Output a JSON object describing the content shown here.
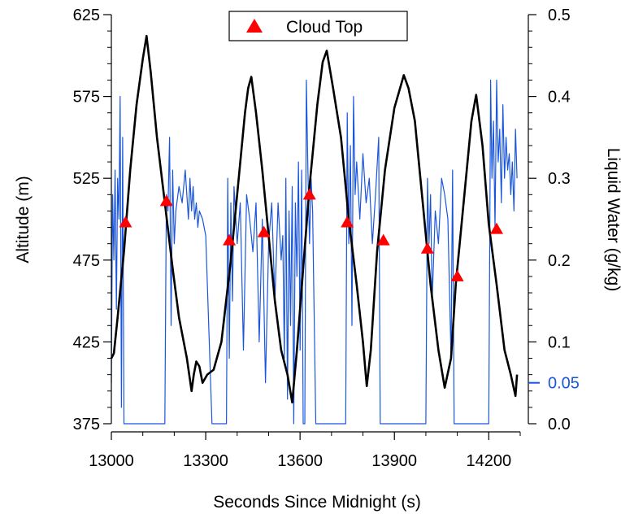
{
  "chart_data": {
    "type": "line",
    "xlabel": "Seconds Since Midnight (s)",
    "ylabel_left": "Altitude (m)",
    "ylabel_right": "Liquid Water (g/kg)",
    "xlim": [
      13000,
      14300
    ],
    "ylim_left": [
      375,
      625
    ],
    "ylim_right": [
      0.0,
      0.5
    ],
    "x_ticks": [
      "13000",
      "13300",
      "13600",
      "13900",
      "14200"
    ],
    "y_left_ticks": [
      "375",
      "425",
      "475",
      "525",
      "575",
      "625"
    ],
    "y_right_ticks": [
      "0.0",
      "0.1",
      "0.2",
      "0.3",
      "0.4",
      "0.5"
    ],
    "y_right_highlight_tick": {
      "label": "0.05",
      "value": 0.05,
      "color": "#1a56db"
    },
    "legend": {
      "label": "Cloud Top",
      "position": "top-center"
    },
    "colors": {
      "altitude": "#000000",
      "liquid_water": "#1a56db",
      "cloud_top": "#ff0000"
    },
    "series": [
      {
        "axis": "left",
        "style": "line",
        "x": [
          13000,
          13008,
          13020,
          13040,
          13060,
          13080,
          13100,
          13112,
          13125,
          13145,
          13170,
          13195,
          13215,
          13240,
          13255,
          13262,
          13270,
          13280,
          13290,
          13305,
          13325,
          13350,
          13380,
          13405,
          13425,
          13435,
          13445,
          13460,
          13480,
          13500,
          13520,
          13540,
          13560,
          13575,
          13590,
          13610,
          13630,
          13655,
          13672,
          13685,
          13705,
          13730,
          13755,
          13780,
          13800,
          13812,
          13825,
          13845,
          13870,
          13900,
          13930,
          13945,
          13965,
          13990,
          14015,
          14040,
          14060,
          14080,
          14095,
          14110,
          14125,
          14145,
          14160,
          14180,
          14200,
          14225,
          14250,
          14270,
          14285,
          14290
        ],
        "y": [
          415,
          418,
          440,
          480,
          530,
          570,
          598,
          612,
          590,
          550,
          510,
          470,
          440,
          415,
          395,
          405,
          413,
          410,
          400,
          405,
          408,
          425,
          475,
          525,
          565,
          580,
          587,
          565,
          530,
          490,
          450,
          420,
          405,
          388,
          420,
          470,
          520,
          570,
          596,
          603,
          580,
          550,
          500,
          460,
          425,
          398,
          420,
          480,
          530,
          568,
          588,
          580,
          560,
          510,
          460,
          420,
          397,
          415,
          460,
          490,
          520,
          560,
          576,
          545,
          497,
          460,
          420,
          405,
          392,
          405
        ]
      },
      {
        "axis": "right",
        "style": "line",
        "x": [
          13000,
          13004,
          13008,
          13012,
          13016,
          13020,
          13024,
          13028,
          13032,
          13036,
          13040,
          13044,
          13048,
          13052,
          13060,
          13080,
          13100,
          13120,
          13140,
          13160,
          13170,
          13175,
          13180,
          13185,
          13190,
          13195,
          13200,
          13205,
          13215,
          13225,
          13235,
          13245,
          13250,
          13255,
          13260,
          13265,
          13270,
          13275,
          13280,
          13290,
          13300,
          13320,
          13340,
          13360,
          13366,
          13370,
          13375,
          13380,
          13385,
          13390,
          13400,
          13410,
          13420,
          13430,
          13440,
          13450,
          13460,
          13470,
          13480,
          13490,
          13500,
          13510,
          13520,
          13530,
          13540,
          13545,
          13550,
          13555,
          13560,
          13565,
          13570,
          13575,
          13580,
          13585,
          13590,
          13595,
          13600,
          13605,
          13610,
          13615,
          13620,
          13625,
          13630,
          13635,
          13640,
          13650,
          13670,
          13700,
          13730,
          13745,
          13750,
          13755,
          13760,
          13765,
          13770,
          13775,
          13780,
          13790,
          13800,
          13810,
          13820,
          13830,
          13840,
          13850,
          13855,
          13860,
          13870,
          13900,
          13940,
          13980,
          14000,
          14005,
          14010,
          14015,
          14020,
          14030,
          14040,
          14050,
          14060,
          14070,
          14080,
          14085,
          14090,
          14100,
          14120,
          14160,
          14200,
          14206,
          14210,
          14215,
          14220,
          14225,
          14230,
          14235,
          14240,
          14245,
          14250,
          14255,
          14260,
          14265,
          14270,
          14275,
          14280,
          14285,
          14290
        ],
        "y": [
          0.05,
          0.28,
          0.2,
          0.31,
          0.14,
          0.3,
          0.25,
          0.4,
          0.02,
          0.35,
          0.0,
          0.0,
          0.0,
          0.0,
          0.0,
          0.0,
          0.0,
          0.0,
          0.0,
          0.0,
          0.0,
          0.28,
          0.26,
          0.35,
          0.12,
          0.31,
          0.22,
          0.26,
          0.29,
          0.27,
          0.31,
          0.25,
          0.3,
          0.26,
          0.29,
          0.25,
          0.27,
          0.24,
          0.26,
          0.25,
          0.23,
          0.0,
          0.0,
          0.0,
          0.0,
          0.3,
          0.08,
          0.27,
          0.15,
          0.29,
          0.22,
          0.27,
          0.09,
          0.28,
          0.25,
          0.21,
          0.27,
          0.1,
          0.25,
          0.05,
          0.22,
          0.27,
          0.15,
          0.27,
          0.2,
          0.23,
          0.08,
          0.3,
          0.03,
          0.26,
          0.12,
          0.29,
          0.0,
          0.27,
          0.18,
          0.32,
          0.09,
          0.31,
          0.0,
          0.0,
          0.42,
          0.31,
          0.22,
          0.3,
          0.26,
          0.0,
          0.0,
          0.0,
          0.0,
          0.0,
          0.38,
          0.22,
          0.34,
          0.12,
          0.4,
          0.28,
          0.32,
          0.25,
          0.33,
          0.27,
          0.3,
          0.22,
          0.28,
          0.35,
          0.0,
          0.0,
          0.0,
          0.0,
          0.0,
          0.0,
          0.0,
          0.3,
          0.22,
          0.28,
          0.15,
          0.26,
          0.22,
          0.3,
          0.28,
          0.25,
          0.08,
          0.31,
          0.0,
          0.0,
          0.0,
          0.0,
          0.0,
          0.42,
          0.3,
          0.37,
          0.24,
          0.42,
          0.32,
          0.36,
          0.27,
          0.39,
          0.3,
          0.35,
          0.31,
          0.33,
          0.28,
          0.32,
          0.26,
          0.36,
          0.3
        ]
      },
      {
        "name": "Cloud Top",
        "axis": "left",
        "style": "markers",
        "x": [
          13045,
          13175,
          13375,
          13485,
          13630,
          13750,
          13865,
          14005,
          14100,
          14225
        ],
        "y": [
          498,
          511,
          487,
          492,
          515,
          498,
          487,
          482,
          465,
          494
        ]
      }
    ]
  }
}
